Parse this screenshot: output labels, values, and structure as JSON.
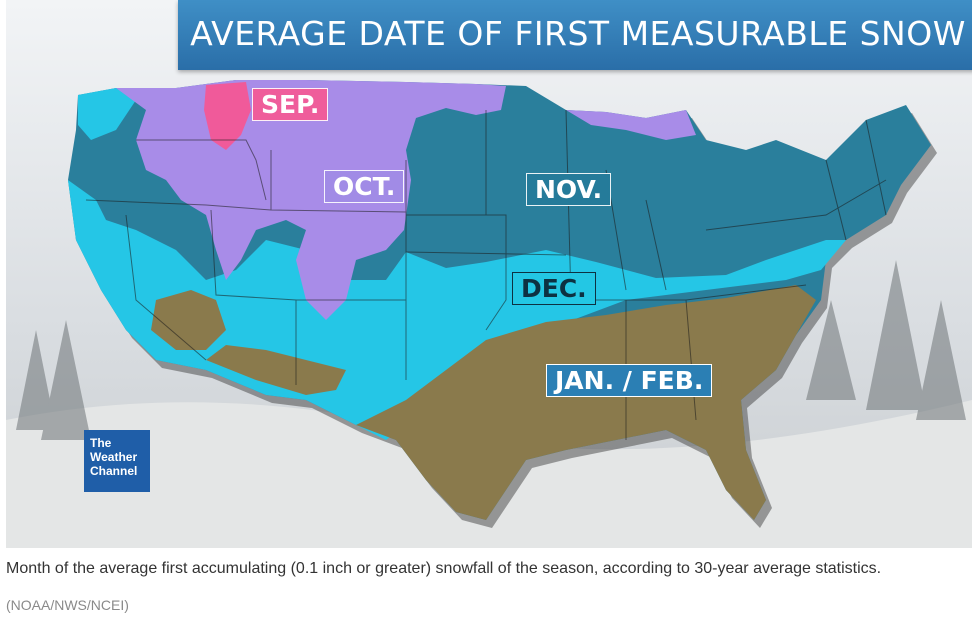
{
  "map": {
    "title": "AVERAGE DATE OF FIRST MEASURABLE SNOW",
    "zones": [
      {
        "label": "SEP.",
        "color": "#f05a9a"
      },
      {
        "label": "OCT.",
        "color": "#a88ce8"
      },
      {
        "label": "NOV.",
        "color": "#2a7f9c"
      },
      {
        "label": "DEC.",
        "color": "#25c6e6"
      },
      {
        "label": "JAN. / FEB.",
        "color": "#8a7a4c"
      }
    ],
    "logo": {
      "line1": "The",
      "line2": "Weather",
      "line3": "Channel"
    }
  },
  "caption": "Month of the average first accumulating (0.1 inch or greater) snowfall of the season, according to 30-year average statistics.",
  "credit": "(NOAA/NWS/NCEI)"
}
